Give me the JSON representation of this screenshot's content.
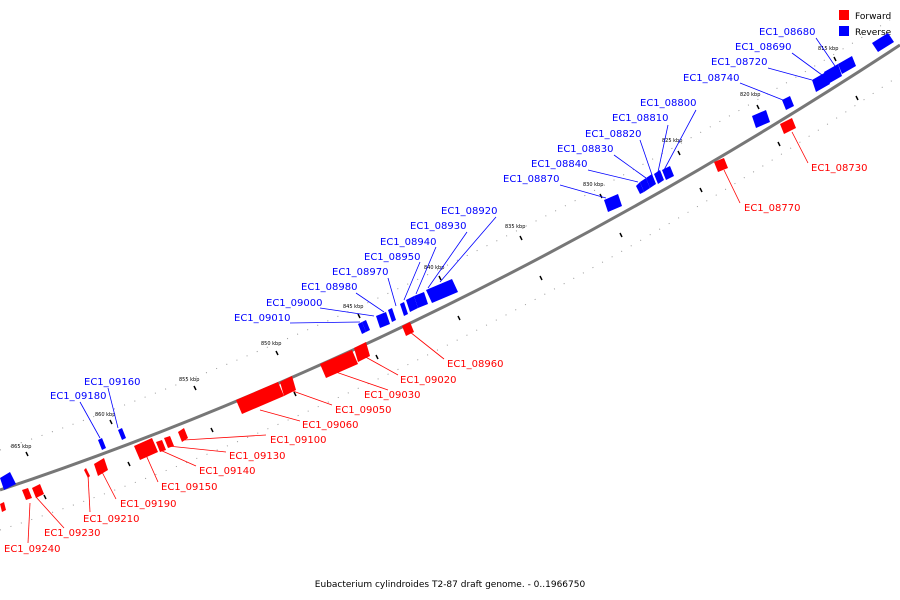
{
  "legend": [
    {
      "label": "Forward",
      "color": "#ff0000"
    },
    {
      "label": "Reverse",
      "color": "#0000ff"
    }
  ],
  "caption": "Eubacterium cylindroides T2-87 draft genome. - 0..1966750",
  "backbone_color": "#808080",
  "scale_labels": [
    "815 kbp",
    "820 kbp",
    "825 kbp",
    "830 kbp",
    "835 kbp",
    "840 kbp",
    "845 kbp",
    "850 kbp",
    "855 kbp",
    "860 kbp",
    "865 kbp"
  ],
  "reverse_genes": [
    "EC1_08680",
    "EC1_08690",
    "EC1_08720",
    "EC1_08740",
    "EC1_08800",
    "EC1_08810",
    "EC1_08820",
    "EC1_08830",
    "EC1_08840",
    "EC1_08870",
    "EC1_08920",
    "EC1_08930",
    "EC1_08940",
    "EC1_08950",
    "EC1_08970",
    "EC1_08980",
    "EC1_09000",
    "EC1_09010",
    "EC1_09160",
    "EC1_09180"
  ],
  "forward_genes": [
    "EC1_08730",
    "EC1_08770",
    "EC1_08960",
    "EC1_09020",
    "EC1_09030",
    "EC1_09050",
    "EC1_09060",
    "EC1_09100",
    "EC1_09130",
    "EC1_09140",
    "EC1_09150",
    "EC1_09190",
    "EC1_09210",
    "EC1_09230",
    "EC1_09240"
  ]
}
